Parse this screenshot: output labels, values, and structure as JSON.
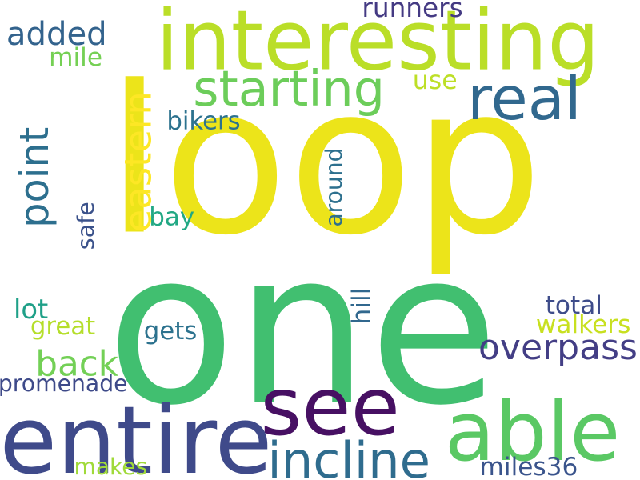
{
  "words": [
    {
      "id": "loop",
      "text": "loop",
      "color": "#ece41a"
    },
    {
      "id": "one",
      "text": "one",
      "color": "#41bf70"
    },
    {
      "id": "interesting",
      "text": "interesting",
      "color": "#bade28"
    },
    {
      "id": "see",
      "text": "see",
      "color": "#471063"
    },
    {
      "id": "entire",
      "text": "entire",
      "color": "#3f4a8a"
    },
    {
      "id": "able",
      "text": "able",
      "color": "#5ac864"
    },
    {
      "id": "point",
      "text": "point",
      "color": "#2d6f8e"
    },
    {
      "id": "starting",
      "text": "starting",
      "color": "#6ccd5a"
    },
    {
      "id": "real",
      "text": "real",
      "color": "#31688e"
    },
    {
      "id": "incline",
      "text": "incline",
      "color": "#2f6c8e"
    },
    {
      "id": "eastern",
      "text": "eastern",
      "color": "#fde725"
    },
    {
      "id": "overpass",
      "text": "overpass",
      "color": "#433e85"
    },
    {
      "id": "added",
      "text": "added",
      "color": "#33638d"
    },
    {
      "id": "back",
      "text": "back",
      "color": "#73d056"
    },
    {
      "id": "runners",
      "text": "runners",
      "color": "#443a83"
    },
    {
      "id": "mile",
      "text": "mile",
      "color": "#75d054"
    },
    {
      "id": "use",
      "text": "use",
      "color": "#bddf26"
    },
    {
      "id": "bikers",
      "text": "bikers",
      "color": "#2c728e"
    },
    {
      "id": "around",
      "text": "around",
      "color": "#2d708e"
    },
    {
      "id": "safe",
      "text": "safe",
      "color": "#3b528b"
    },
    {
      "id": "bay",
      "text": "bay",
      "color": "#22a884"
    },
    {
      "id": "hill",
      "text": "hill",
      "color": "#31688e"
    },
    {
      "id": "total",
      "text": "total",
      "color": "#3e4c8a"
    },
    {
      "id": "lot",
      "text": "lot",
      "color": "#1fa088"
    },
    {
      "id": "walkers",
      "text": "walkers",
      "color": "#c8e020"
    },
    {
      "id": "great",
      "text": "great",
      "color": "#b5de2b"
    },
    {
      "id": "gets",
      "text": "gets",
      "color": "#2c728e"
    },
    {
      "id": "promenade",
      "text": "promenade",
      "color": "#3e4a89"
    },
    {
      "id": "makes",
      "text": "makes",
      "color": "#a0da39"
    },
    {
      "id": "miles36",
      "text": "miles36",
      "color": "#3a548c"
    }
  ]
}
